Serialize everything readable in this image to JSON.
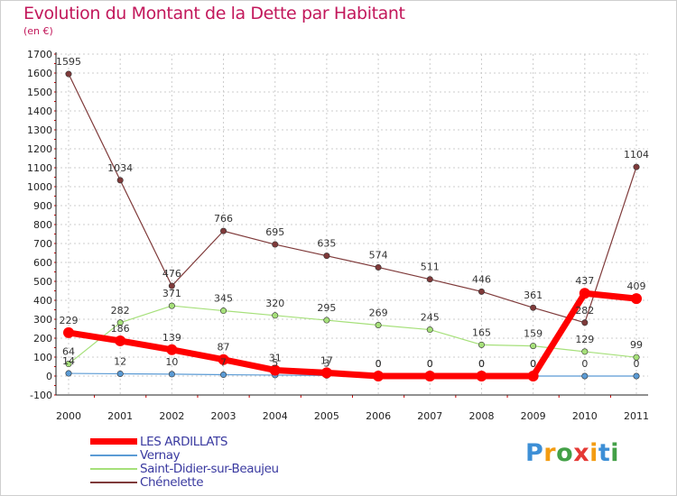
{
  "chart_data": {
    "type": "line",
    "title": "Evolution du Montant de la Dette par Habitant",
    "subtitle": "(en €)",
    "categories": [
      "2000",
      "2001",
      "2002",
      "2003",
      "2004",
      "2005",
      "2006",
      "2007",
      "2008",
      "2009",
      "2010",
      "2011"
    ],
    "ylim": [
      -100,
      1700
    ],
    "yticks": [
      "-100",
      "0",
      "100",
      "200",
      "300",
      "400",
      "500",
      "600",
      "700",
      "800",
      "900",
      "1000",
      "1100",
      "1200",
      "1300",
      "1400",
      "1500",
      "1600",
      "1700"
    ],
    "grid": true,
    "legend_position": "bottom-left",
    "series": [
      {
        "name": "LES ARDILLATS",
        "color": "#ff0000",
        "values": [
          229,
          186,
          139,
          87,
          31,
          17,
          0,
          0,
          0,
          0,
          437,
          409
        ],
        "labels": [
          "229",
          "186",
          "139",
          "87",
          "31",
          "17",
          "0",
          "0",
          "0",
          "0",
          "437",
          "409"
        ]
      },
      {
        "name": "Vernay",
        "color": "#5b9bd5",
        "values": [
          14,
          12,
          10,
          7,
          5,
          3,
          0,
          0,
          0,
          0,
          0,
          0
        ],
        "labels": [
          "14",
          "12",
          "10",
          "7",
          "5",
          "3",
          "0",
          "0",
          "0",
          "0",
          "0",
          "0"
        ]
      },
      {
        "name": "Saint-Didier-sur-Beaujeu",
        "color": "#a6e07a",
        "values": [
          64,
          282,
          371,
          345,
          320,
          295,
          269,
          245,
          165,
          159,
          129,
          99
        ],
        "labels": [
          "64",
          "282",
          "371",
          "345",
          "320",
          "295",
          "269",
          "245",
          "165",
          "159",
          "129",
          "99"
        ]
      },
      {
        "name": "Chénelette",
        "color": "#7f3a3a",
        "values": [
          1595,
          1034,
          476,
          766,
          695,
          635,
          574,
          511,
          446,
          361,
          282,
          1104
        ],
        "labels": [
          "1595",
          "1034",
          "476",
          "766",
          "695",
          "635",
          "574",
          "511",
          "446",
          "361",
          "282",
          "1104"
        ]
      }
    ]
  },
  "logo": {
    "letters": [
      "P",
      "r",
      "o",
      "x",
      "i",
      "t",
      "i"
    ],
    "colors": [
      "#3d8fd6",
      "#f39c12",
      "#43a047",
      "#e53935",
      "#f39c12",
      "#3d8fd6",
      "#43a047"
    ]
  }
}
